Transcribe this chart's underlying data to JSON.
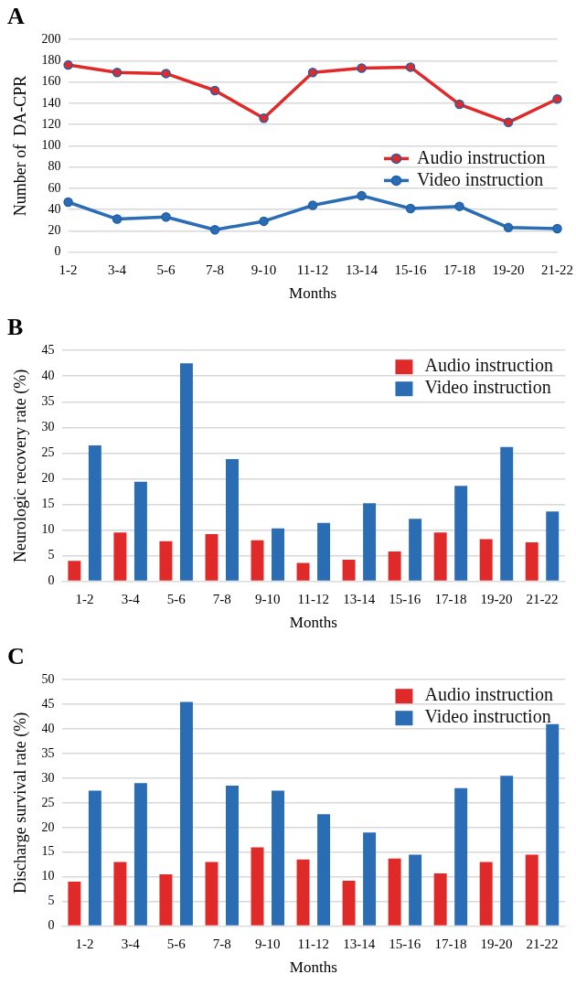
{
  "chart_data": [
    {
      "type": "line",
      "title": "A",
      "xlabel": "Months",
      "ylabel": "Number of  DA-CPR",
      "categories": [
        "1-2",
        "3-4",
        "5-6",
        "7-8",
        "9-10",
        "11-12",
        "13-14",
        "15-16",
        "17-18",
        "19-20",
        "21-22"
      ],
      "series": [
        {
          "name": "Audio instruction",
          "color": "#e02a2a",
          "values": [
            176,
            169,
            168,
            152,
            126,
            169,
            173,
            174,
            139,
            122,
            144
          ]
        },
        {
          "name": "Video instruction",
          "color": "#2a6db5",
          "values": [
            47,
            31,
            33,
            21,
            29,
            44,
            53,
            41,
            43,
            23,
            22
          ]
        }
      ],
      "ylim": [
        0,
        200
      ],
      "yticks": [
        0,
        20,
        40,
        60,
        80,
        100,
        120,
        140,
        160,
        180,
        200
      ],
      "grid": "y",
      "legend": "right",
      "marker": "circle",
      "line_style": "solid"
    },
    {
      "type": "bar",
      "title": "B",
      "xlabel": "Months",
      "ylabel": "Neurologic recovery rate (%)",
      "categories": [
        "1-2",
        "3-4",
        "5-6",
        "7-8",
        "9-10",
        "11-12",
        "13-14",
        "15-16",
        "17-18",
        "19-20",
        "21-22"
      ],
      "series": [
        {
          "name": "Audio instruction",
          "color": "#e02a2a",
          "values": [
            4,
            9.5,
            7.8,
            9.2,
            8,
            3.6,
            4.2,
            5.8,
            9.5,
            8.2,
            7.6
          ]
        },
        {
          "name": "Video instruction",
          "color": "#2a6db5",
          "values": [
            26.5,
            19.4,
            42.5,
            23.8,
            10.3,
            11.4,
            15.2,
            12.2,
            18.6,
            26.2,
            13.6
          ]
        }
      ],
      "ylim": [
        0,
        45
      ],
      "yticks": [
        0,
        5,
        10,
        15,
        20,
        25,
        30,
        35,
        40,
        45
      ],
      "grid": "y",
      "legend": "top right"
    },
    {
      "type": "bar",
      "title": "C",
      "xlabel": "Months",
      "ylabel": "Discharge survival rate (%)",
      "categories": [
        "1-2",
        "3-4",
        "5-6",
        "7-8",
        "9-10",
        "11-12",
        "13-14",
        "15-16",
        "17-18",
        "19-20",
        "21-22"
      ],
      "series": [
        {
          "name": "Audio instruction",
          "color": "#e02a2a",
          "values": [
            9,
            13,
            10.5,
            13,
            16,
            13.5,
            9.2,
            13.7,
            10.7,
            13,
            14.5
          ]
        },
        {
          "name": "Video instruction",
          "color": "#2a6db5",
          "values": [
            27.5,
            29,
            45.5,
            28.5,
            27.5,
            22.7,
            19,
            14.5,
            28,
            30.5,
            41
          ]
        }
      ],
      "ylim": [
        0,
        50
      ],
      "yticks": [
        0,
        5,
        10,
        15,
        20,
        25,
        30,
        35,
        40,
        45,
        50
      ],
      "grid": "y",
      "legend": "top right"
    }
  ]
}
